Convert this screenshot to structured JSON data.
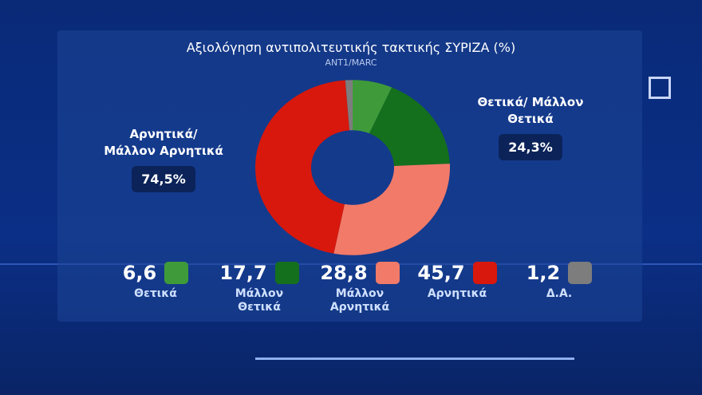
{
  "chart_data": {
    "type": "donut",
    "title": "Αξιολόγηση αντιπολιτευτικής τακτικής ΣΥΡΙΖΑ (%)",
    "subtitle": "ANT1/MARC",
    "categories": [
      "Θετικά",
      "Μάλλον Θετικά",
      "Μάλλον Αρνητικά",
      "Αρνητικά",
      "Δ.Α."
    ],
    "values": [
      6.6,
      17.7,
      28.8,
      45.7,
      1.2
    ],
    "value_labels": [
      "6,6",
      "17,7",
      "28,8",
      "45,7",
      "1,2"
    ],
    "colors": [
      "#3f9b3a",
      "#14701c",
      "#f27a68",
      "#d8180c",
      "#7d7d7d"
    ],
    "annotations": [
      {
        "text": "Αρνητικά/ Μάλλον Αρνητικά",
        "value": 74.5,
        "label": "74,5%"
      },
      {
        "text": "Θετικά/ Μάλλον Θετικά",
        "value": 24.3,
        "label": "24,3%"
      }
    ]
  }
}
